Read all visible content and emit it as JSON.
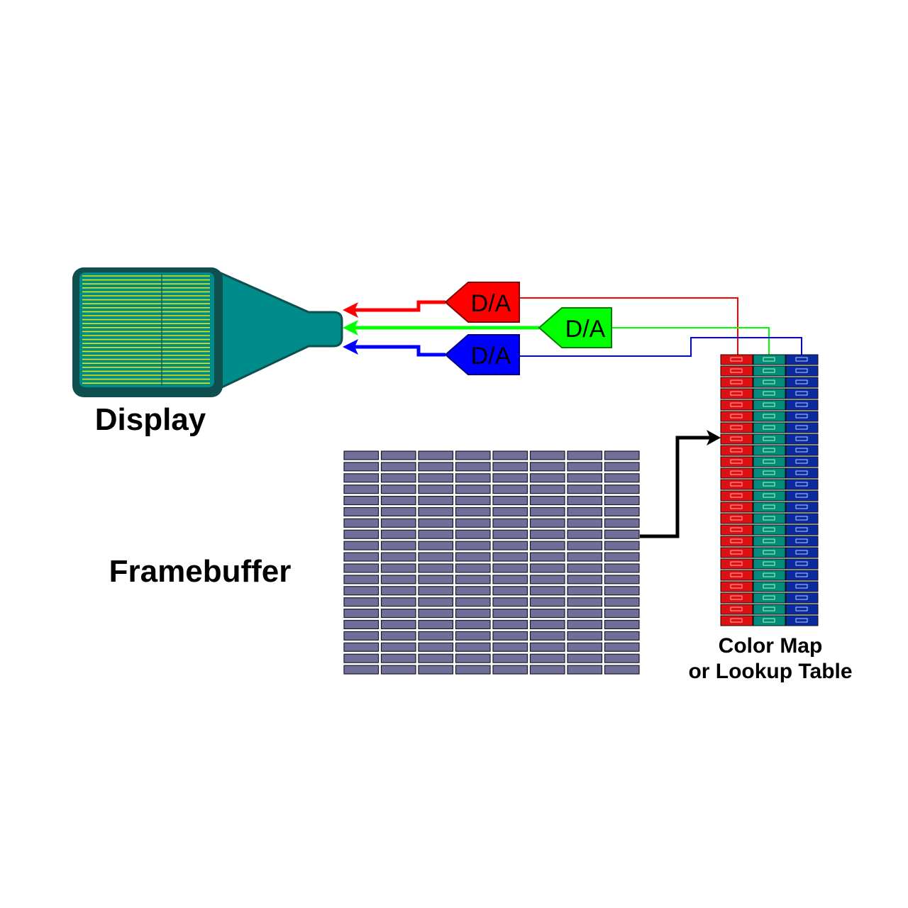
{
  "labels": {
    "display": "Display",
    "framebuffer": "Framebuffer",
    "color_map_line1": "Color Map",
    "color_map_line2": "or Lookup Table"
  },
  "converters": [
    {
      "id": "red",
      "label": "D/A",
      "color": "#ff0000"
    },
    {
      "id": "green",
      "label": "D/A",
      "color": "#00ff00"
    },
    {
      "id": "blue",
      "label": "D/A",
      "color": "#0000ff"
    }
  ],
  "colors": {
    "display_body": "#008b8b",
    "display_dark": "#0f4f4f",
    "scanline": "#e6e600",
    "framebuffer_cell": "#6f6f9a",
    "lut_red": "#e01010",
    "lut_green": "#008b7a",
    "lut_blue": "#0a2aa0",
    "pointer": "#000000"
  },
  "framebuffer": {
    "rows": 20,
    "cols": 8
  },
  "lookup_table": {
    "rows": 24,
    "cols": 3
  }
}
